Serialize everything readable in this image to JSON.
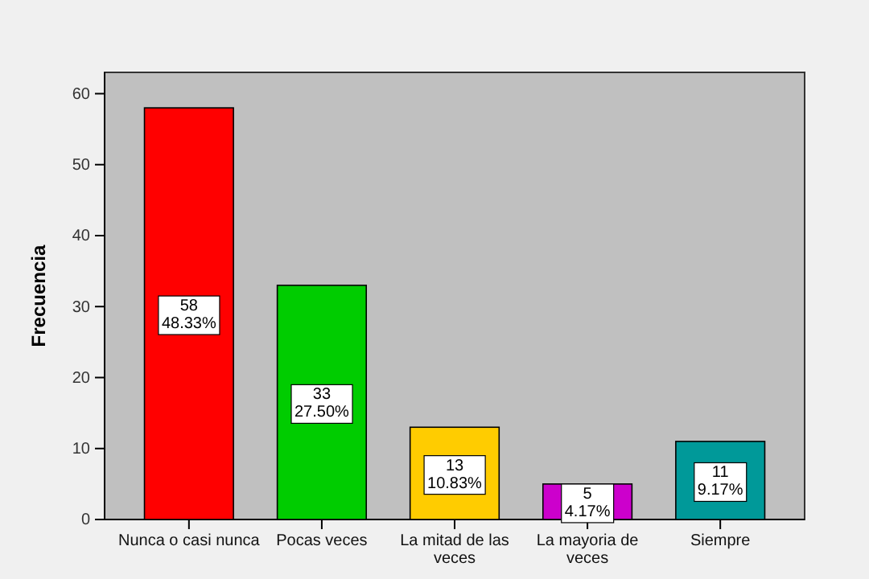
{
  "chart_data": {
    "type": "bar",
    "ylabel": "Frecuencia",
    "categories": [
      "Nunca o casi nunca",
      "Pocas veces",
      "La mitad de las veces",
      "La mayoria de veces",
      "Siempre"
    ],
    "values": [
      58,
      33,
      13,
      5,
      11
    ],
    "colors": [
      "#ff0000",
      "#00cc00",
      "#ffcc00",
      "#cc00cc",
      "#009999"
    ],
    "value_labels": [
      "58\n48.33%",
      "33\n27.50%",
      "13\n10.83%",
      "5\n4.17%",
      "11\n9.17%"
    ],
    "ylim": [
      0,
      63
    ],
    "yticks": [
      0,
      10,
      20,
      30,
      40,
      50,
      60
    ],
    "grid": false
  }
}
